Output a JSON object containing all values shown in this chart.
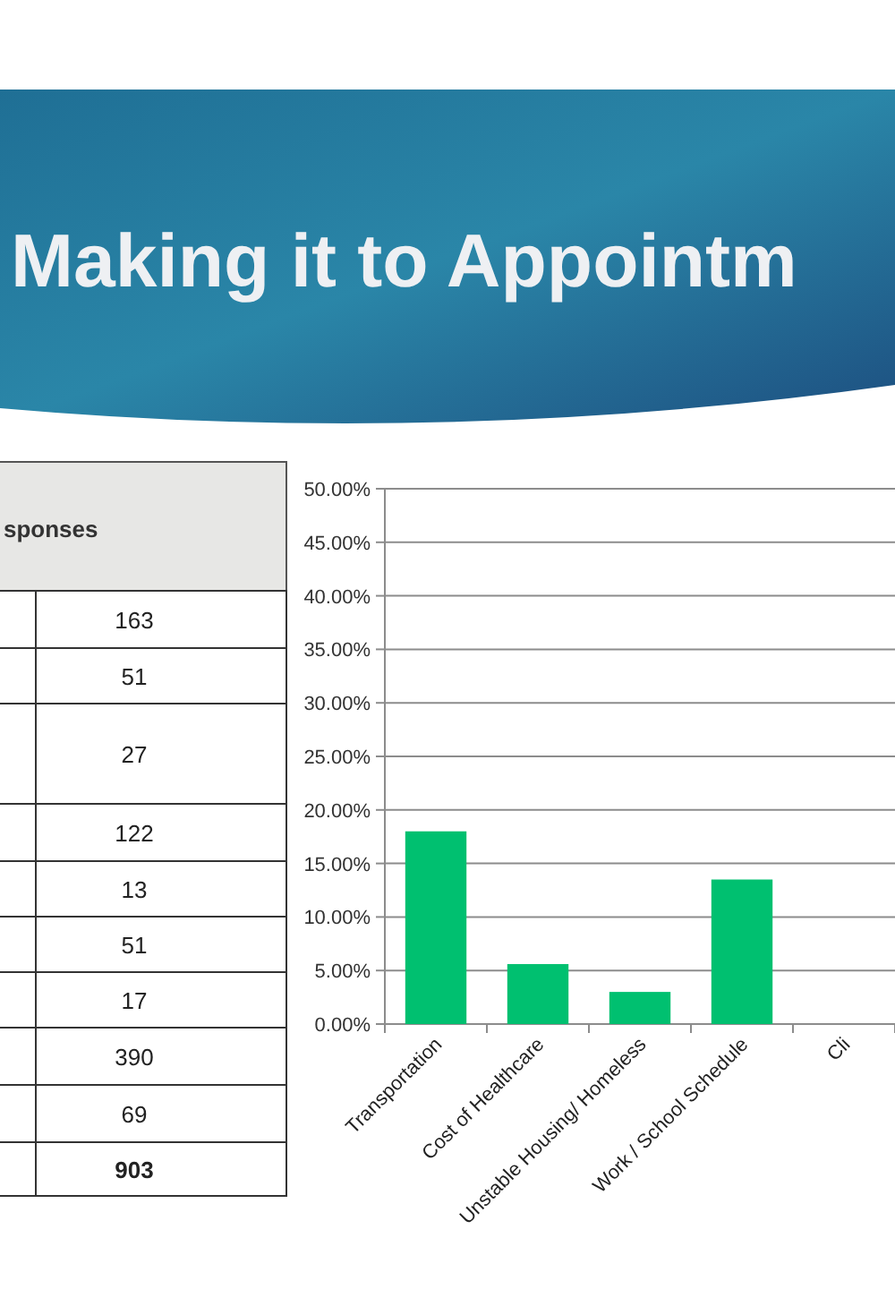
{
  "chart_data": [
    {
      "type": "other",
      "title": "Making it to Appointm",
      "annotations": [
        "sponses",
        "163",
        "51",
        "27",
        "122",
        "13",
        "51",
        "17",
        "390",
        "69",
        "903"
      ]
    },
    {
      "type": "bar",
      "categories": [
        "Transportation",
        "Cost of Healthcare",
        "Unstable Housing/ Homeless",
        "Work / School Schedule",
        "Cli"
      ],
      "values": [
        18.0,
        5.6,
        3.0,
        13.5,
        null
      ],
      "color": "#00c070",
      "ylim": [
        0,
        50
      ],
      "yticks": [
        {
          "value": 0,
          "label": "0.00%"
        },
        {
          "value": 5,
          "label": "5.00%"
        },
        {
          "value": 10,
          "label": "10.00%"
        },
        {
          "value": 15,
          "label": "15.00%"
        },
        {
          "value": 20,
          "label": "20.00%"
        },
        {
          "value": 25,
          "label": "25.00%"
        },
        {
          "value": 30,
          "label": "30.00%"
        },
        {
          "value": 35,
          "label": "35.00%"
        },
        {
          "value": 40,
          "label": "40.00%"
        },
        {
          "value": 45,
          "label": "45.00%"
        },
        {
          "value": 50,
          "label": "50.00%"
        }
      ],
      "grid": "y"
    }
  ]
}
